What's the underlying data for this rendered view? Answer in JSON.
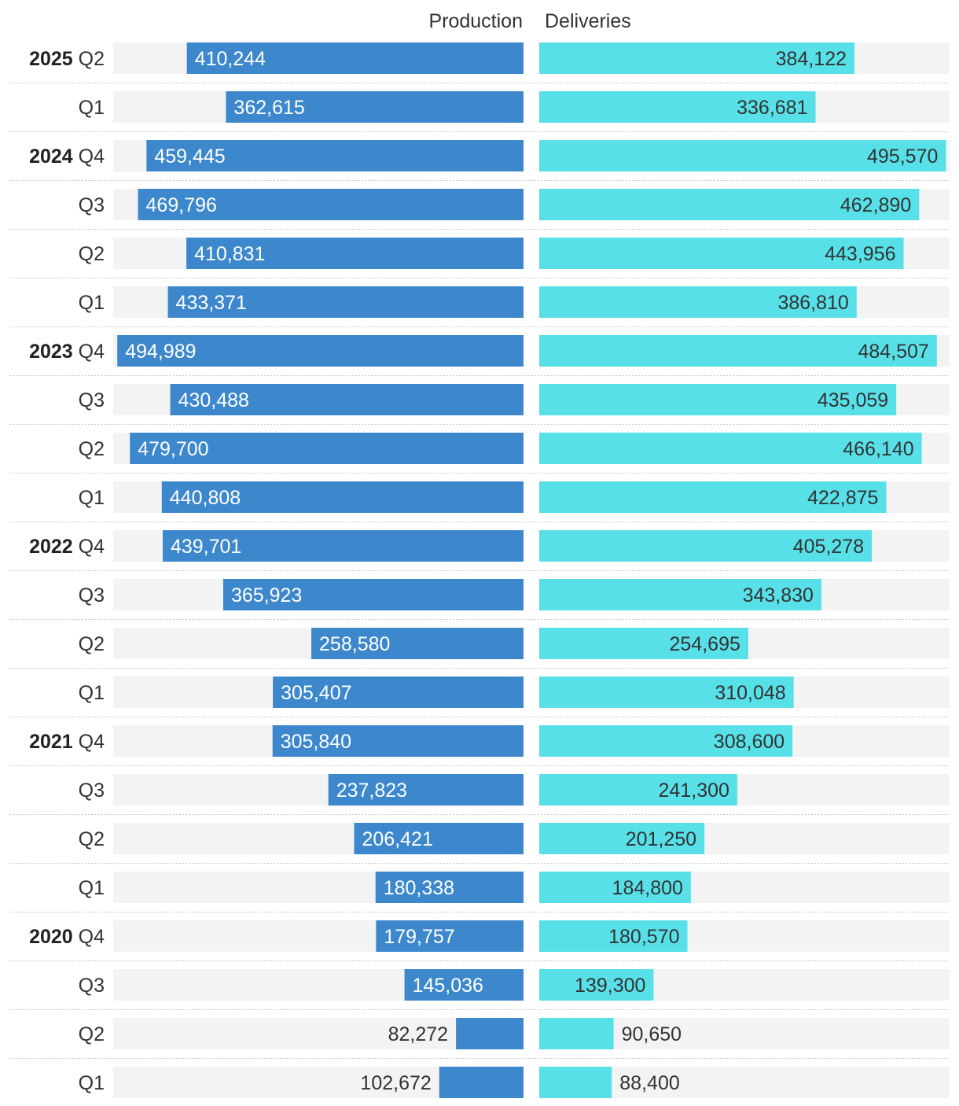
{
  "chart_data": {
    "type": "bar",
    "title": "",
    "headers": {
      "production": "Production",
      "deliveries": "Deliveries"
    },
    "xlim": [
      0,
      500000
    ],
    "colors": {
      "production": "#3d88cc",
      "deliveries": "#57e0e8",
      "track": "#f3f3f3",
      "grid": "#c8c8c8"
    },
    "rows": [
      {
        "year": "2025",
        "quarter": "Q2",
        "production": 410244,
        "production_label": "410,244",
        "deliveries": 384122,
        "deliveries_label": "384,122"
      },
      {
        "year": "",
        "quarter": "Q1",
        "production": 362615,
        "production_label": "362,615",
        "deliveries": 336681,
        "deliveries_label": "336,681"
      },
      {
        "year": "2024",
        "quarter": "Q4",
        "production": 459445,
        "production_label": "459,445",
        "deliveries": 495570,
        "deliveries_label": "495,570"
      },
      {
        "year": "",
        "quarter": "Q3",
        "production": 469796,
        "production_label": "469,796",
        "deliveries": 462890,
        "deliveries_label": "462,890"
      },
      {
        "year": "",
        "quarter": "Q2",
        "production": 410831,
        "production_label": "410,831",
        "deliveries": 443956,
        "deliveries_label": "443,956"
      },
      {
        "year": "",
        "quarter": "Q1",
        "production": 433371,
        "production_label": "433,371",
        "deliveries": 386810,
        "deliveries_label": "386,810"
      },
      {
        "year": "2023",
        "quarter": "Q4",
        "production": 494989,
        "production_label": "494,989",
        "deliveries": 484507,
        "deliveries_label": "484,507"
      },
      {
        "year": "",
        "quarter": "Q3",
        "production": 430488,
        "production_label": "430,488",
        "deliveries": 435059,
        "deliveries_label": "435,059"
      },
      {
        "year": "",
        "quarter": "Q2",
        "production": 479700,
        "production_label": "479,700",
        "deliveries": 466140,
        "deliveries_label": "466,140"
      },
      {
        "year": "",
        "quarter": "Q1",
        "production": 440808,
        "production_label": "440,808",
        "deliveries": 422875,
        "deliveries_label": "422,875"
      },
      {
        "year": "2022",
        "quarter": "Q4",
        "production": 439701,
        "production_label": "439,701",
        "deliveries": 405278,
        "deliveries_label": "405,278"
      },
      {
        "year": "",
        "quarter": "Q3",
        "production": 365923,
        "production_label": "365,923",
        "deliveries": 343830,
        "deliveries_label": "343,830"
      },
      {
        "year": "",
        "quarter": "Q2",
        "production": 258580,
        "production_label": "258,580",
        "deliveries": 254695,
        "deliveries_label": "254,695"
      },
      {
        "year": "",
        "quarter": "Q1",
        "production": 305407,
        "production_label": "305,407",
        "deliveries": 310048,
        "deliveries_label": "310,048"
      },
      {
        "year": "2021",
        "quarter": "Q4",
        "production": 305840,
        "production_label": "305,840",
        "deliveries": 308600,
        "deliveries_label": "308,600"
      },
      {
        "year": "",
        "quarter": "Q3",
        "production": 237823,
        "production_label": "237,823",
        "deliveries": 241300,
        "deliveries_label": "241,300"
      },
      {
        "year": "",
        "quarter": "Q2",
        "production": 206421,
        "production_label": "206,421",
        "deliveries": 201250,
        "deliveries_label": "201,250"
      },
      {
        "year": "",
        "quarter": "Q1",
        "production": 180338,
        "production_label": "180,338",
        "deliveries": 184800,
        "deliveries_label": "184,800"
      },
      {
        "year": "2020",
        "quarter": "Q4",
        "production": 179757,
        "production_label": "179,757",
        "deliveries": 180570,
        "deliveries_label": "180,570"
      },
      {
        "year": "",
        "quarter": "Q3",
        "production": 145036,
        "production_label": "145,036",
        "deliveries": 139300,
        "deliveries_label": "139,300"
      },
      {
        "year": "",
        "quarter": "Q2",
        "production": 82272,
        "production_label": "82,272",
        "deliveries": 90650,
        "deliveries_label": "90,650"
      },
      {
        "year": "",
        "quarter": "Q1",
        "production": 102672,
        "production_label": "102,672",
        "deliveries": 88400,
        "deliveries_label": "88,400"
      }
    ]
  }
}
